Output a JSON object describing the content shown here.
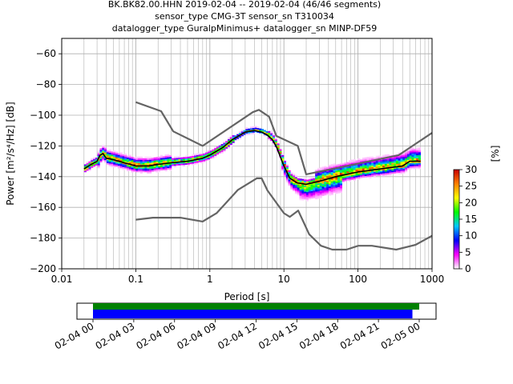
{
  "title": {
    "line1": "BK.BK82.00.HHN   2019-02-04 -- 2019-02-04  (46/46 segments)",
    "line2": "sensor_type CMG-3T sensor_sn T310034",
    "line3": "datalogger_type GuralpMinimus+ datalogger_sn MINP-DF59"
  },
  "chart_data": [
    {
      "type": "heatmap",
      "title": "",
      "xlabel": "Period [s]",
      "ylabel": "Power [m²/s⁴/Hz] [dB]",
      "xscale": "log",
      "xlim": [
        0.01,
        1000
      ],
      "ylim": [
        -200,
        -50
      ],
      "xticks": [
        {
          "value": 0.01,
          "label": "0.01"
        },
        {
          "value": 0.1,
          "label": "0.1"
        },
        {
          "value": 1,
          "label": "1"
        },
        {
          "value": 10,
          "label": "10"
        },
        {
          "value": 100,
          "label": "100"
        },
        {
          "value": 1000,
          "label": "1000"
        }
      ],
      "yticks": [
        -200,
        -180,
        -160,
        -140,
        -120,
        -100,
        -80,
        -60
      ],
      "grid": true,
      "colorbar": {
        "label": "[%]",
        "range": [
          0,
          30
        ],
        "ticks": [
          0,
          5,
          10,
          15,
          20,
          25,
          30
        ],
        "colors": [
          "#ffffff",
          "#ff00ff",
          "#0000ff",
          "#00c8ff",
          "#00ff00",
          "#ffff00",
          "#ff8000",
          "#c80000"
        ]
      },
      "series": [
        {
          "role": "mode",
          "color": "#000000",
          "x": [
            0.02,
            0.025,
            0.03,
            0.033,
            0.036,
            0.04,
            0.05,
            0.07,
            0.1,
            0.15,
            0.2,
            0.3,
            0.5,
            0.8,
            1,
            1.5,
            2,
            3,
            4,
            5,
            6,
            7,
            8,
            10,
            12,
            15,
            20,
            30,
            50,
            100,
            200,
            400,
            500,
            700
          ],
          "y": [
            -135,
            -132,
            -130,
            -126,
            -125,
            -128,
            -129,
            -131,
            -133,
            -133,
            -132,
            -131,
            -130,
            -128,
            -126,
            -121,
            -116,
            -111,
            -110,
            -111,
            -113,
            -116,
            -121,
            -133,
            -141,
            -144,
            -145,
            -143,
            -140,
            -137,
            -135,
            -133,
            -130,
            -130
          ]
        },
        {
          "role": "noise-model-high",
          "color": "#646464",
          "x": [
            0.1,
            0.22,
            0.32,
            0.8,
            3.8,
            4.6,
            6.3,
            7.9,
            15.4,
            20,
            354.8,
            1000
          ],
          "y": [
            -91.5,
            -97.4,
            -110.5,
            -120,
            -98,
            -96.5,
            -101,
            -113.5,
            -120,
            -138.5,
            -126,
            -111.5
          ]
        },
        {
          "role": "noise-model-low",
          "color": "#646464",
          "x": [
            0.1,
            0.17,
            0.4,
            0.8,
            1.24,
            2.4,
            4.3,
            5,
            6,
            10,
            12,
            15.6,
            21.9,
            31.6,
            45,
            70,
            101,
            154,
            328,
            600,
            1000
          ],
          "y": [
            -168,
            -166.7,
            -166.7,
            -169.2,
            -163.7,
            -148.6,
            -141.1,
            -141.1,
            -149,
            -163.8,
            -166.2,
            -162.1,
            -177.5,
            -185,
            -187.5,
            -187.5,
            -185,
            -185,
            -187.5,
            -184.4,
            -178.5
          ]
        }
      ]
    },
    {
      "type": "timeline",
      "xlim": [
        "2019-02-04 00:00",
        "2019-02-05 01:00"
      ],
      "xticks": [
        "02-04 00",
        "02-04 03",
        "02-04 06",
        "02-04 09",
        "02-04 12",
        "02-04 15",
        "02-04 18",
        "02-04 21",
        "02-05 00"
      ],
      "bars": [
        {
          "role": "data-coverage",
          "color": "#008000",
          "start": "2019-02-04 00:00",
          "end": "2019-02-05 00:00"
        },
        {
          "role": "psd-coverage",
          "color": "#0000ff",
          "start": "2019-02-04 00:00",
          "end": "2019-02-04 23:30"
        }
      ]
    }
  ]
}
